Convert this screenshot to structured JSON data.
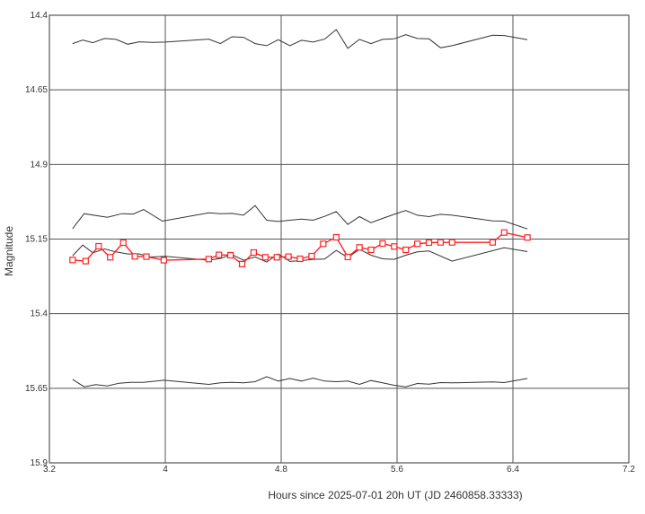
{
  "chart_data": {
    "type": "line",
    "xlabel": "Hours since 2025-07-01 20h UT (JD 2460858.33333)",
    "ylabel": "Magnitude",
    "xlim": [
      3.2,
      7.2
    ],
    "ylim": [
      14.4,
      15.9
    ],
    "y_inverted": true,
    "grid": true,
    "x_ticks": [
      "3.2",
      "4",
      "4.8",
      "5.6",
      "6.4",
      "7.2"
    ],
    "x_tick_values": [
      3.2,
      4.0,
      4.8,
      5.6,
      6.4,
      7.2
    ],
    "y_ticks": [
      "14.4",
      "14.65",
      "14.9",
      "15.15",
      "15.4",
      "15.65",
      "15.9"
    ],
    "y_tick_values": [
      14.4,
      14.65,
      14.9,
      15.15,
      15.4,
      15.65,
      15.9
    ],
    "series": [
      {
        "color": "#333333",
        "marker": "none",
        "x": [
          3.36,
          3.43,
          3.5,
          3.58,
          3.66,
          3.74,
          3.82,
          3.91,
          4.0,
          4.3,
          4.38,
          4.46,
          4.54,
          4.62,
          4.7,
          4.78,
          4.86,
          4.94,
          5.02,
          5.1,
          5.18,
          5.26,
          5.34,
          5.42,
          5.5,
          5.58,
          5.66,
          5.74,
          5.82,
          5.9,
          5.98,
          6.26,
          6.34,
          6.5
        ],
        "y": [
          14.495,
          14.483,
          14.492,
          14.478,
          14.481,
          14.497,
          14.489,
          14.491,
          14.49,
          14.48,
          14.495,
          14.472,
          14.474,
          14.495,
          14.502,
          14.482,
          14.502,
          14.484,
          14.49,
          14.48,
          14.448,
          14.511,
          14.481,
          14.495,
          14.481,
          14.479,
          14.465,
          14.478,
          14.479,
          14.509,
          14.502,
          14.467,
          14.468,
          14.482
        ]
      },
      {
        "color": "#333333",
        "marker": "none",
        "x": [
          3.36,
          3.44,
          3.6,
          3.7,
          3.78,
          3.85,
          3.98,
          4.3,
          4.38,
          4.46,
          4.54,
          4.62,
          4.7,
          4.78,
          4.86,
          4.94,
          5.02,
          5.1,
          5.18,
          5.26,
          5.34,
          5.42,
          5.5,
          5.58,
          5.66,
          5.74,
          5.82,
          5.9,
          5.98,
          6.26,
          6.34,
          6.5
        ],
        "y": [
          15.115,
          15.065,
          15.077,
          15.065,
          15.066,
          15.051,
          15.09,
          15.062,
          15.065,
          15.064,
          15.07,
          15.038,
          15.087,
          15.091,
          15.087,
          15.083,
          15.087,
          15.074,
          15.058,
          15.101,
          15.075,
          15.095,
          15.081,
          15.067,
          15.054,
          15.07,
          15.075,
          15.067,
          15.07,
          15.089,
          15.09,
          15.116
        ]
      },
      {
        "color": "#333333",
        "marker": "none",
        "x": [
          3.36,
          3.43,
          3.5,
          3.58,
          3.66,
          3.74,
          3.82,
          3.9,
          4.0,
          4.3,
          4.38,
          4.46,
          4.54,
          4.62,
          4.7,
          4.78,
          4.86,
          4.94,
          5.02,
          5.1,
          5.18,
          5.26,
          5.34,
          5.42,
          5.5,
          5.58,
          5.66,
          5.74,
          5.82,
          5.98,
          6.34,
          6.5
        ],
        "y": [
          15.206,
          15.17,
          15.196,
          15.183,
          15.193,
          15.2,
          15.2,
          15.21,
          15.208,
          15.221,
          15.215,
          15.202,
          15.221,
          15.21,
          15.227,
          15.2,
          15.225,
          15.222,
          15.218,
          15.217,
          15.188,
          15.212,
          15.184,
          15.204,
          15.216,
          15.218,
          15.204,
          15.193,
          15.19,
          15.224,
          15.179,
          15.192
        ]
      },
      {
        "color": "#333333",
        "marker": "none",
        "x": [
          3.36,
          3.44,
          3.52,
          3.6,
          3.68,
          3.76,
          3.85,
          3.99,
          4.3,
          4.38,
          4.46,
          4.54,
          4.62,
          4.7,
          4.78,
          4.86,
          4.94,
          5.02,
          5.1,
          5.18,
          5.26,
          5.34,
          5.42,
          5.5,
          5.58,
          5.66,
          5.74,
          5.82,
          5.9,
          5.98,
          6.26,
          6.34,
          6.5
        ],
        "y": [
          15.62,
          15.645,
          15.638,
          15.642,
          15.633,
          15.63,
          15.63,
          15.623,
          15.637,
          15.632,
          15.63,
          15.632,
          15.628,
          15.611,
          15.626,
          15.617,
          15.626,
          15.616,
          15.626,
          15.628,
          15.626,
          15.637,
          15.624,
          15.632,
          15.64,
          15.645,
          15.634,
          15.636,
          15.631,
          15.632,
          15.629,
          15.631,
          15.617
        ]
      },
      {
        "color": "#ff2222",
        "marker": "square",
        "x": [
          3.36,
          3.45,
          3.54,
          3.62,
          3.71,
          3.79,
          3.87,
          3.99,
          4.3,
          4.37,
          4.45,
          4.53,
          4.61,
          4.69,
          4.77,
          4.85,
          4.93,
          5.01,
          5.09,
          5.18,
          5.26,
          5.34,
          5.42,
          5.5,
          5.58,
          5.66,
          5.74,
          5.82,
          5.9,
          5.98,
          6.26,
          6.34,
          6.5
        ],
        "y": [
          15.22,
          15.224,
          15.174,
          15.211,
          15.162,
          15.208,
          15.209,
          15.221,
          15.217,
          15.203,
          15.204,
          15.234,
          15.195,
          15.211,
          15.211,
          15.209,
          15.216,
          15.207,
          15.166,
          15.144,
          15.21,
          15.178,
          15.186,
          15.165,
          15.175,
          15.186,
          15.166,
          15.162,
          15.161,
          15.161,
          15.161,
          15.128,
          15.145
        ]
      }
    ]
  }
}
